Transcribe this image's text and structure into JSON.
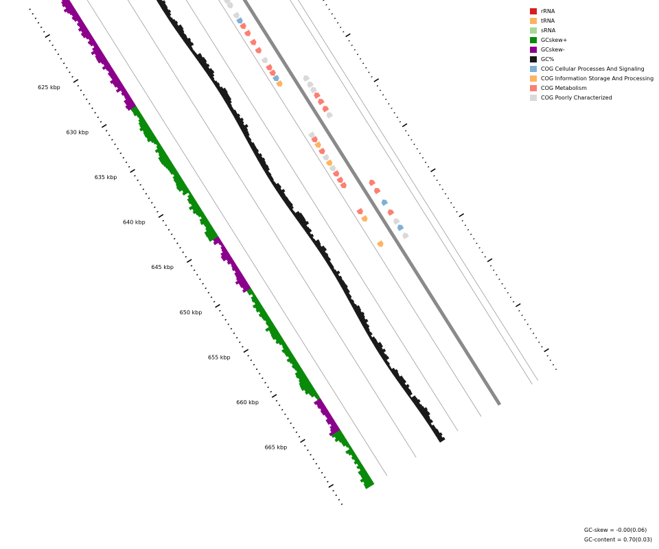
{
  "legend": {
    "items": [
      {
        "label": "rRNA",
        "color": "#d61e1e"
      },
      {
        "label": "tRNA",
        "color": "#fdb462"
      },
      {
        "label": "sRNA",
        "color": "#a6d996"
      },
      {
        "label": "GCskew+",
        "color": "#0a8a0a"
      },
      {
        "label": "GCskew-",
        "color": "#8b008b"
      },
      {
        "label": "GC%",
        "color": "#1a1a1a"
      },
      {
        "label": "COG Cellular Processes And Signaling",
        "color": "#80b1d3"
      },
      {
        "label": "COG Information Storage And Processing",
        "color": "#fdb462"
      },
      {
        "label": "COG Metabolism",
        "color": "#fb8072"
      },
      {
        "label": "COG Poorly Characterized",
        "color": "#d9d9d9"
      }
    ]
  },
  "axis": {
    "ticks": [
      {
        "kbp": 625,
        "label": "625 kbp"
      },
      {
        "kbp": 630,
        "label": "630 kbp"
      },
      {
        "kbp": 635,
        "label": "635 kbp"
      },
      {
        "kbp": 640,
        "label": "640 kbp"
      },
      {
        "kbp": 645,
        "label": "645 kbp"
      },
      {
        "kbp": 650,
        "label": "650 kbp"
      },
      {
        "kbp": 655,
        "label": "655 kbp"
      },
      {
        "kbp": 660,
        "label": "660 kbp"
      },
      {
        "kbp": 665,
        "label": "665 kbp"
      }
    ]
  },
  "features": [
    {
      "kbp": 624.0,
      "strand": "+",
      "cog": "poorly"
    },
    {
      "kbp": 624.6,
      "strand": "+",
      "cog": "metabolism"
    },
    {
      "kbp": 625.3,
      "strand": "+",
      "cog": "metabolism"
    },
    {
      "kbp": 626.0,
      "strand": "+",
      "cog": "poorly"
    },
    {
      "kbp": 626.5,
      "strand": "+",
      "cog": "poorly"
    },
    {
      "kbp": 627.6,
      "strand": "+",
      "cog": "poorly"
    },
    {
      "kbp": 628.2,
      "strand": "+",
      "cog": "cellular"
    },
    {
      "kbp": 628.8,
      "strand": "+",
      "cog": "metabolism"
    },
    {
      "kbp": 629.6,
      "strand": "+",
      "cog": "metabolism"
    },
    {
      "kbp": 630.6,
      "strand": "+",
      "cog": "metabolism"
    },
    {
      "kbp": 631.5,
      "strand": "+",
      "cog": "metabolism"
    },
    {
      "kbp": 632.6,
      "strand": "+",
      "cog": "poorly"
    },
    {
      "kbp": 633.4,
      "strand": "+",
      "cog": "metabolism"
    },
    {
      "kbp": 634.0,
      "strand": "+",
      "cog": "metabolism"
    },
    {
      "kbp": 634.6,
      "strand": "+",
      "cog": "cellular"
    },
    {
      "kbp": 635.2,
      "strand": "+",
      "cog": "information"
    },
    {
      "kbp": 636.0,
      "strand": "-",
      "cog": "poorly"
    },
    {
      "kbp": 636.7,
      "strand": "-",
      "cog": "poorly"
    },
    {
      "kbp": 637.3,
      "strand": "-",
      "cog": "poorly"
    },
    {
      "kbp": 637.9,
      "strand": "-",
      "cog": "metabolism"
    },
    {
      "kbp": 638.6,
      "strand": "-",
      "cog": "metabolism"
    },
    {
      "kbp": 639.4,
      "strand": "-",
      "cog": "metabolism"
    },
    {
      "kbp": 640.1,
      "strand": "-",
      "cog": "poorly"
    },
    {
      "kbp": 640.9,
      "strand": "+",
      "cog": "poorly"
    },
    {
      "kbp": 641.4,
      "strand": "+",
      "cog": "metabolism"
    },
    {
      "kbp": 642.0,
      "strand": "+",
      "cog": "information"
    },
    {
      "kbp": 642.7,
      "strand": "+",
      "cog": "metabolism"
    },
    {
      "kbp": 643.4,
      "strand": "+",
      "cog": "poorly"
    },
    {
      "kbp": 644.0,
      "strand": "+",
      "cog": "information"
    },
    {
      "kbp": 644.6,
      "strand": "+",
      "cog": "poorly"
    },
    {
      "kbp": 645.2,
      "strand": "+",
      "cog": "metabolism"
    },
    {
      "kbp": 645.9,
      "strand": "+",
      "cog": "metabolism"
    },
    {
      "kbp": 646.5,
      "strand": "+",
      "cog": "metabolism"
    },
    {
      "kbp": 647.6,
      "strand": "-",
      "cog": "metabolism"
    },
    {
      "kbp": 648.5,
      "strand": "-",
      "cog": "metabolism"
    },
    {
      "kbp": 649.4,
      "strand": "+",
      "cog": "metabolism"
    },
    {
      "kbp": 649.8,
      "strand": "-",
      "cog": "cellular"
    },
    {
      "kbp": 650.2,
      "strand": "+",
      "cog": "information"
    },
    {
      "kbp": 650.9,
      "strand": "-",
      "cog": "metabolism"
    },
    {
      "kbp": 651.9,
      "strand": "-",
      "cog": "poorly"
    },
    {
      "kbp": 652.6,
      "strand": "-",
      "cog": "cellular"
    },
    {
      "kbp": 653.0,
      "strand": "+",
      "cog": "information"
    },
    {
      "kbp": 653.5,
      "strand": "-",
      "cog": "poorly"
    }
  ],
  "stats": {
    "gc_skew": "GC-skew = -0.00(0.06)",
    "gc_content": "GC-content = 0.70(0.03)"
  }
}
